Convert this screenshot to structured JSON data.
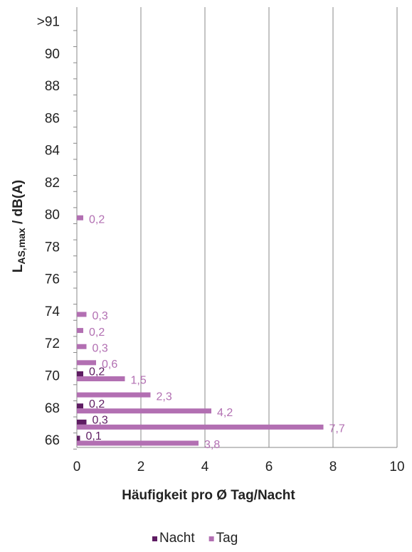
{
  "chart_data": {
    "type": "hbar",
    "y_label": {
      "main": "L",
      "sub": "AS,max",
      "rest": " / dB(A)"
    },
    "x_label": "Häufigkeit pro Ø Tag/Nacht",
    "categories": [
      "66",
      null,
      "68",
      null,
      "70",
      null,
      "72",
      null,
      "74",
      null,
      "76",
      null,
      "78",
      null,
      "80",
      null,
      "82",
      null,
      "84",
      null,
      "86",
      null,
      "88",
      null,
      "90",
      null,
      ">91"
    ],
    "series": [
      {
        "name": "Nacht",
        "color": "#5e1c62",
        "values": [
          0.1,
          0.3,
          0.2,
          null,
          0.2,
          null,
          null,
          null,
          null,
          null,
          null,
          null,
          null,
          null,
          null,
          null,
          null,
          null,
          null,
          null,
          null,
          null,
          null,
          null,
          null,
          null,
          null
        ],
        "value_labels": [
          "0,1",
          "0,3",
          "0,2",
          null,
          "0,2",
          null,
          null,
          null,
          null,
          null,
          null,
          null,
          null,
          null,
          null,
          null,
          null,
          null,
          null,
          null,
          null,
          null,
          null,
          null,
          null,
          null,
          null
        ]
      },
      {
        "name": "Tag",
        "color": "#b26fb2",
        "values": [
          3.8,
          7.7,
          4.2,
          2.3,
          1.5,
          0.6,
          0.3,
          0.2,
          0.3,
          null,
          null,
          null,
          null,
          null,
          0.2,
          null,
          null,
          null,
          null,
          null,
          null,
          null,
          null,
          null,
          null,
          null,
          null
        ],
        "value_labels": [
          "3,8",
          "7,7",
          "4,2",
          "2,3",
          "1,5",
          "0,6",
          "0,3",
          "0,2",
          "0,3",
          null,
          null,
          null,
          null,
          null,
          "0,2",
          null,
          null,
          null,
          null,
          null,
          null,
          null,
          null,
          null,
          null,
          null,
          null
        ]
      }
    ],
    "xlim": [
      0,
      10
    ],
    "xticks": [
      0,
      2,
      4,
      6,
      8,
      10
    ],
    "grid": true,
    "legend": "bottom"
  }
}
